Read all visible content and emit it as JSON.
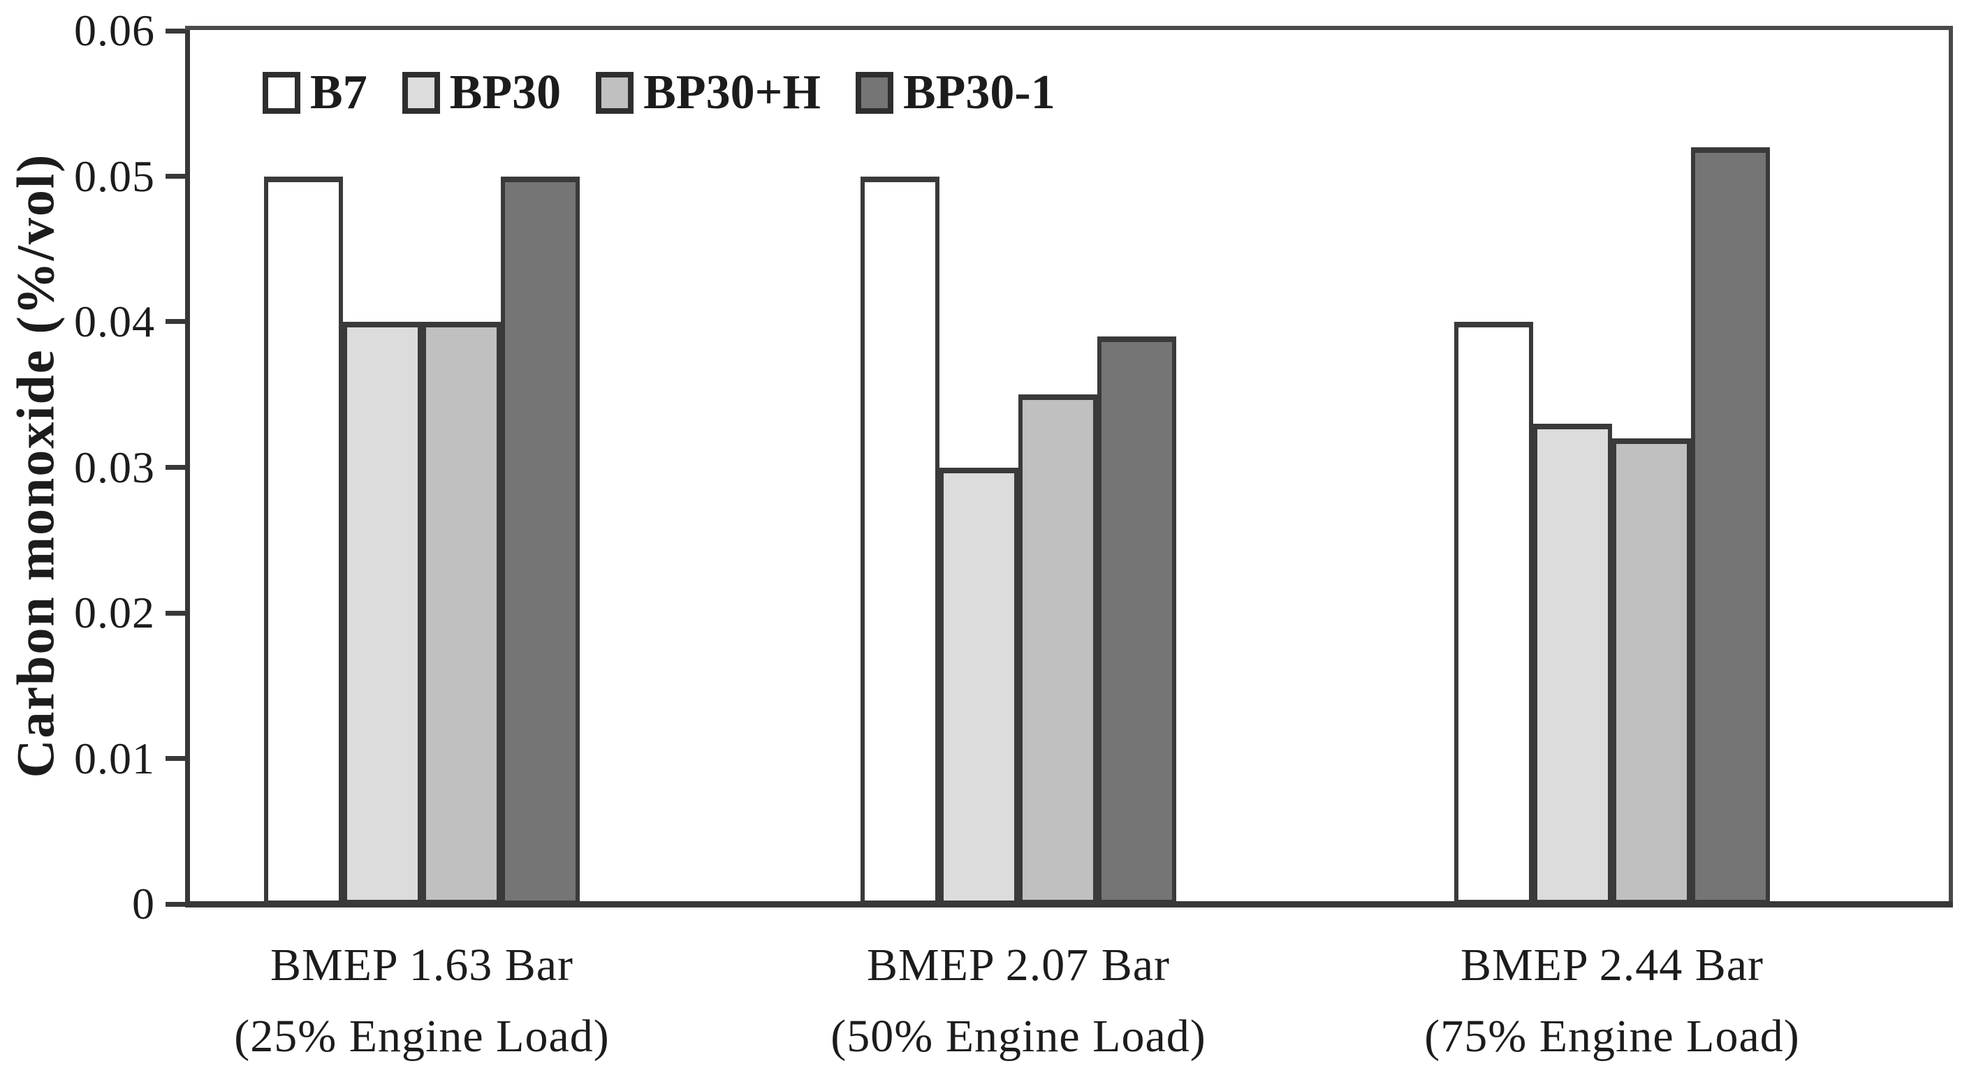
{
  "chart_data": {
    "type": "bar",
    "title": "",
    "ylabel": "Carbon monoxide (%/vol)",
    "xlabel": "",
    "grid": false,
    "legend_position": "top-left-inside",
    "y_axis": {
      "min": 0,
      "max": 0.06,
      "tick_step": 0.01,
      "tick_labels": [
        "0",
        "0.01",
        "0.02",
        "0.03",
        "0.04",
        "0.05",
        "0.06"
      ]
    },
    "categories": [
      {
        "line1": "BMEP 1.63 Bar",
        "line2": "(25% Engine Load)"
      },
      {
        "line1": "BMEP 2.07 Bar",
        "line2": "(50% Engine Load)"
      },
      {
        "line1": "BMEP 2.44 Bar",
        "line2": "(75% Engine Load)"
      }
    ],
    "series": [
      {
        "name": "B7",
        "fill": "#ffffff",
        "values": [
          0.05,
          0.05,
          0.04
        ]
      },
      {
        "name": "BP30",
        "fill": "#dcdcdc",
        "values": [
          0.04,
          0.03,
          0.033
        ]
      },
      {
        "name": "BP30+H",
        "fill": "#c0c0c0",
        "values": [
          0.04,
          0.035,
          0.032
        ]
      },
      {
        "name": "BP30-1",
        "fill": "#757575",
        "values": [
          0.05,
          0.039,
          0.052
        ]
      }
    ],
    "colors": {
      "bar_border": "#3a3a3a",
      "axis": "#383838",
      "text": "#1c1c1c",
      "background": "#ffffff"
    }
  }
}
